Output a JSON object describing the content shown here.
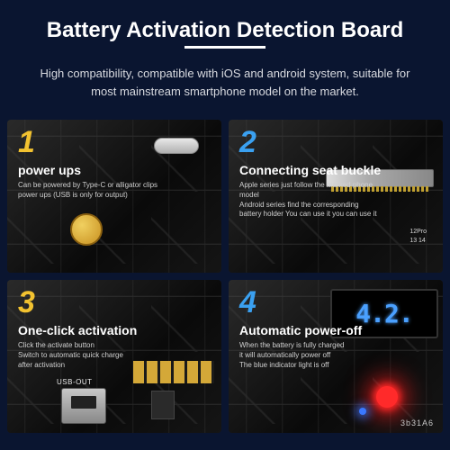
{
  "header": {
    "title": "Battery Activation Detection Board",
    "subtitle": "High compatibility, compatible with iOS and android system, suitable for most mainstream smartphone model on the market."
  },
  "cards": [
    {
      "num": "1",
      "num_color": "#f2c230",
      "title": "power ups",
      "desc": "Can be powered by Type-C or alligator clips\npower ups (USB is only for output)"
    },
    {
      "num": "2",
      "num_color": "#3aa0f0",
      "title": "Connecting seat buckle",
      "desc": "Apple series just follow the marked phone model\nAndroid series find the corresponding\nbattery holder You can use it you can use it"
    },
    {
      "num": "3",
      "num_color": "#f2c230",
      "title": "One-click activation",
      "desc": "Click the activate button\nSwitch to automatic quick charge\nafter activation"
    },
    {
      "num": "4",
      "num_color": "#3aa0f0",
      "title": "Automatic power-off",
      "desc": "When the battery is fully charged\nit will automatically power off\nThe blue indicator light is off"
    }
  ],
  "pcb_labels_card2": "12Pro\n13 14",
  "usb_out_label": "USB-OUT",
  "display_value": "4.2.",
  "display_color": "#4aa0ff",
  "serial_number": "3b31A6",
  "serial_color": "#c8c8c8",
  "led_red_color": "#ff2a2a",
  "led_blue_color": "#3a78ff",
  "colors": {
    "background": "#0a1530",
    "title_text": "#ffffff",
    "subtitle_text": "#d8dae0"
  }
}
